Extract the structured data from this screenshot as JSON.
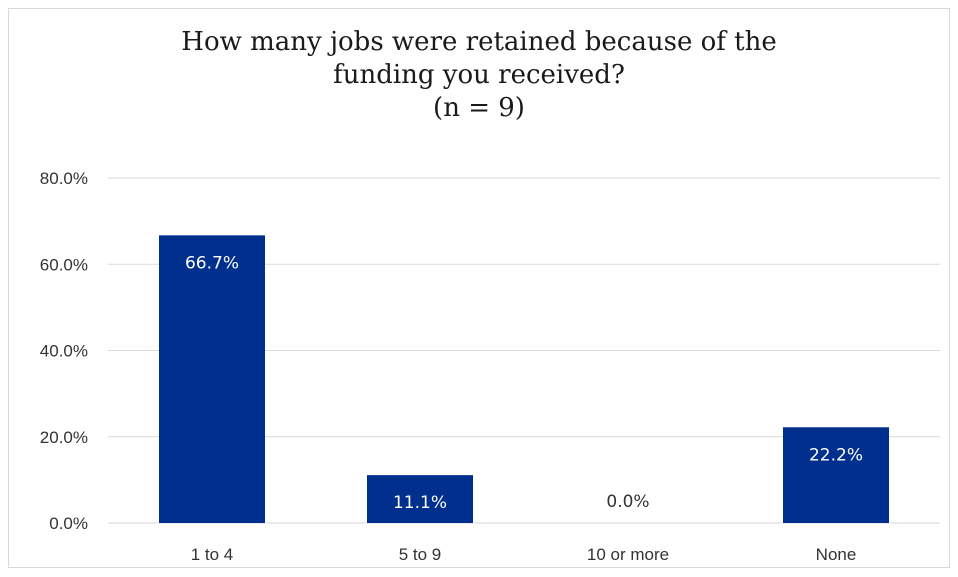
{
  "chart_data": {
    "type": "bar",
    "title_lines": [
      "How many jobs were retained because of the",
      "funding you received?",
      "(n = 9)"
    ],
    "categories": [
      "1 to 4",
      "5 to 9",
      "10 or more",
      "None"
    ],
    "values": [
      66.7,
      11.1,
      0.0,
      22.2
    ],
    "data_labels": [
      "66.7%",
      "11.1%",
      "0.0%",
      "22.2%"
    ],
    "y_ticks": [
      0,
      20,
      40,
      60,
      80
    ],
    "y_tick_labels": [
      "0.0%",
      "20.0%",
      "40.0%",
      "60.0%",
      "80.0%"
    ],
    "ylim": [
      0,
      80
    ],
    "grid": true,
    "legend": "none",
    "bar_color": "#002F8E",
    "gridline_color": "#D9D9D9",
    "label_color_inside": "#FFFFFF",
    "label_color_outside": "#333333"
  }
}
